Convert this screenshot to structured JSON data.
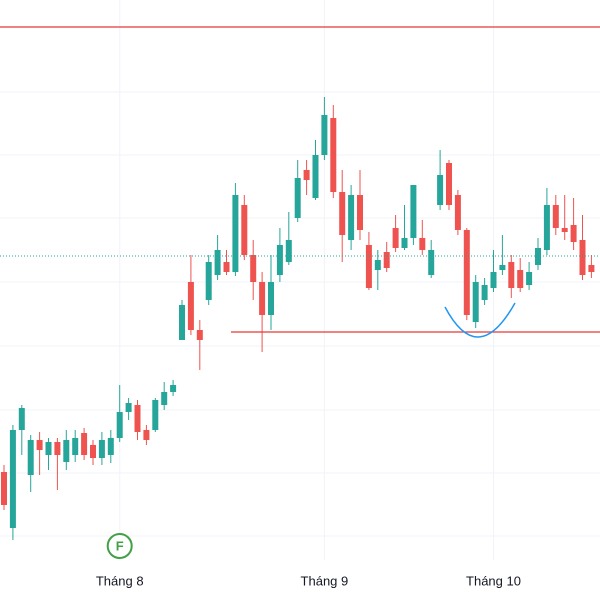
{
  "chart_data": {
    "type": "candlestick",
    "categories": [
      null,
      null,
      null,
      null,
      null,
      null,
      null,
      null,
      null,
      null,
      null,
      null,
      null,
      "Tháng 8",
      null,
      null,
      null,
      null,
      null,
      null,
      null,
      null,
      null,
      null,
      null,
      null,
      null,
      null,
      null,
      null,
      null,
      null,
      null,
      null,
      null,
      null,
      "Tháng 9",
      null,
      null,
      null,
      null,
      null,
      null,
      null,
      null,
      null,
      null,
      null,
      null,
      null,
      null,
      null,
      null,
      null,
      null,
      "Tháng 10",
      null,
      null,
      null,
      null,
      null,
      null,
      null,
      null,
      null,
      null,
      null
    ],
    "open": [
      128,
      72,
      170,
      125,
      160,
      145,
      158,
      138,
      145,
      167,
      155,
      142,
      145,
      162,
      188,
      195,
      170,
      170,
      195,
      208,
      260,
      318,
      270,
      300,
      325,
      338,
      328,
      395,
      345,
      318,
      285,
      325,
      338,
      382,
      430,
      402,
      445,
      482,
      408,
      360,
      405,
      355,
      330,
      348,
      372,
      352,
      362,
      362,
      325,
      395,
      437,
      405,
      370,
      278,
      300,
      312,
      330,
      338,
      330,
      315,
      335,
      350,
      395,
      372,
      375,
      360,
      335
    ],
    "high": [
      135,
      175,
      195,
      165,
      168,
      162,
      162,
      170,
      170,
      172,
      160,
      168,
      170,
      215,
      202,
      200,
      175,
      202,
      218,
      220,
      300,
      345,
      280,
      345,
      365,
      350,
      417,
      405,
      360,
      328,
      345,
      372,
      388,
      440,
      440,
      460,
      503,
      495,
      430,
      415,
      430,
      368,
      350,
      358,
      385,
      395,
      415,
      380,
      360,
      450,
      440,
      410,
      372,
      325,
      322,
      350,
      365,
      345,
      342,
      338,
      362,
      412,
      405,
      405,
      402,
      385,
      345
    ],
    "low": [
      90,
      60,
      145,
      108,
      125,
      130,
      110,
      130,
      138,
      140,
      135,
      135,
      137,
      158,
      180,
      160,
      155,
      168,
      190,
      204,
      260,
      265,
      230,
      295,
      320,
      325,
      324,
      340,
      300,
      248,
      270,
      318,
      335,
      378,
      405,
      400,
      440,
      402,
      338,
      350,
      360,
      310,
      310,
      328,
      348,
      350,
      355,
      345,
      322,
      390,
      390,
      365,
      280,
      272,
      295,
      308,
      325,
      302,
      308,
      310,
      330,
      345,
      365,
      360,
      350,
      320,
      322
    ],
    "close": [
      95,
      170,
      192,
      160,
      150,
      158,
      145,
      160,
      162,
      145,
      142,
      160,
      162,
      188,
      197,
      168,
      160,
      200,
      208,
      215,
      295,
      270,
      260,
      338,
      350,
      328,
      405,
      345,
      318,
      285,
      318,
      355,
      360,
      422,
      420,
      445,
      485,
      408,
      365,
      405,
      370,
      312,
      340,
      332,
      352,
      362,
      415,
      350,
      350,
      425,
      395,
      370,
      285,
      318,
      315,
      328,
      335,
      312,
      312,
      328,
      352,
      395,
      372,
      368,
      358,
      325,
      328
    ],
    "up_color": "#26a69a",
    "down_color": "#ef5350",
    "ylim": [
      40,
      600
    ],
    "ygrid": [
      508,
      445,
      382,
      318,
      254,
      190,
      127,
      64
    ],
    "levels": [
      {
        "value": 573,
        "from": 0,
        "color": "#e53935"
      },
      {
        "value": 268,
        "from": 26,
        "color": "#e53935"
      }
    ],
    "last_price": 344,
    "markers": [
      {
        "label": "F",
        "index": 13,
        "color": "#43a047"
      }
    ]
  }
}
